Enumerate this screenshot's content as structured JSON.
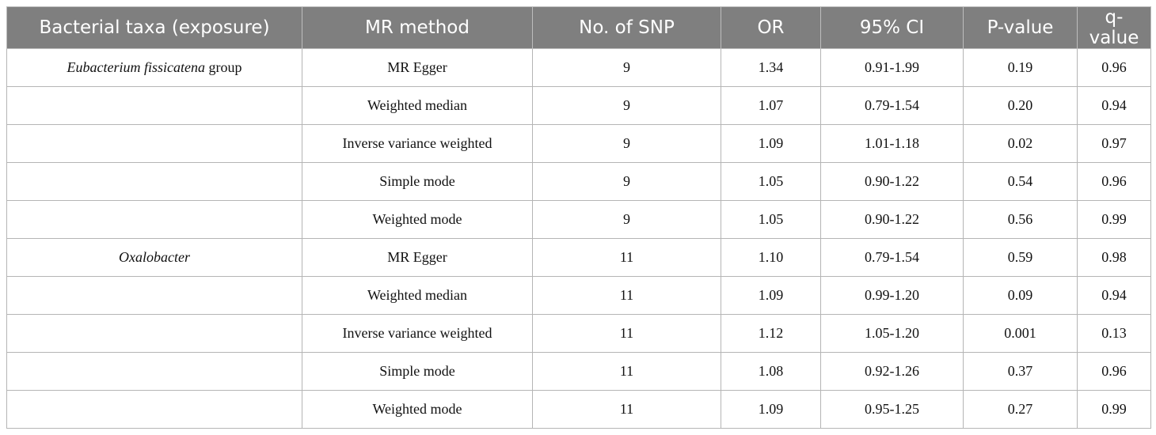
{
  "table": {
    "headers": [
      "Bacterial taxa (exposure)",
      "MR method",
      "No. of SNP",
      "OR",
      "95% CI",
      "P-value",
      "q-value"
    ],
    "rows": [
      {
        "taxa": {
          "italic": "Eubacterium fissicatena",
          "plain": " group"
        },
        "method": "MR Egger",
        "snp": "9",
        "or": "1.34",
        "ci": "0.91-1.99",
        "p": "0.19",
        "q": "0.96"
      },
      {
        "taxa": {
          "italic": "",
          "plain": ""
        },
        "method": "Weighted median",
        "snp": "9",
        "or": "1.07",
        "ci": "0.79-1.54",
        "p": "0.20",
        "q": "0.94"
      },
      {
        "taxa": {
          "italic": "",
          "plain": ""
        },
        "method": "Inverse variance weighted",
        "snp": "9",
        "or": "1.09",
        "ci": "1.01-1.18",
        "p": "0.02",
        "q": "0.97"
      },
      {
        "taxa": {
          "italic": "",
          "plain": ""
        },
        "method": "Simple mode",
        "snp": "9",
        "or": "1.05",
        "ci": "0.90-1.22",
        "p": "0.54",
        "q": "0.96"
      },
      {
        "taxa": {
          "italic": "",
          "plain": ""
        },
        "method": "Weighted mode",
        "snp": "9",
        "or": "1.05",
        "ci": "0.90-1.22",
        "p": "0.56",
        "q": "0.99"
      },
      {
        "taxa": {
          "italic": "Oxalobacter",
          "plain": ""
        },
        "method": "MR Egger",
        "snp": "11",
        "or": "1.10",
        "ci": "0.79-1.54",
        "p": "0.59",
        "q": "0.98"
      },
      {
        "taxa": {
          "italic": "",
          "plain": ""
        },
        "method": "Weighted median",
        "snp": "11",
        "or": "1.09",
        "ci": "0.99-1.20",
        "p": "0.09",
        "q": "0.94"
      },
      {
        "taxa": {
          "italic": "",
          "plain": ""
        },
        "method": "Inverse variance weighted",
        "snp": "11",
        "or": "1.12",
        "ci": "1.05-1.20",
        "p": "0.001",
        "q": "0.13"
      },
      {
        "taxa": {
          "italic": "",
          "plain": ""
        },
        "method": "Simple mode",
        "snp": "11",
        "or": "1.08",
        "ci": "0.92-1.26",
        "p": "0.37",
        "q": "0.96"
      },
      {
        "taxa": {
          "italic": "",
          "plain": ""
        },
        "method": "Weighted mode",
        "snp": "11",
        "or": "1.09",
        "ci": "0.95-1.25",
        "p": "0.27",
        "q": "0.99"
      }
    ]
  }
}
